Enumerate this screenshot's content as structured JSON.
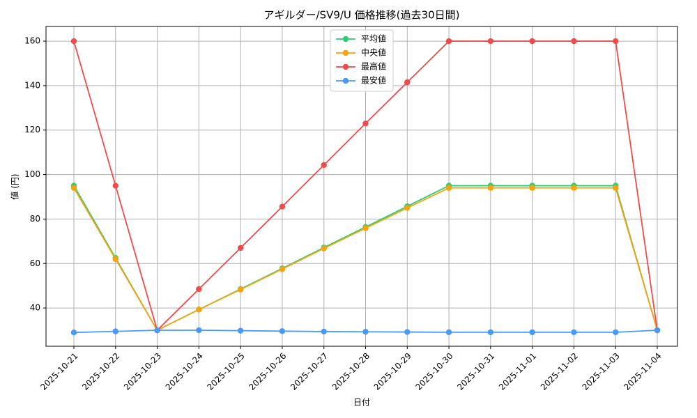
{
  "chart_data": {
    "type": "line",
    "title": "アギルダー/SV9/U 価格推移(過去30日間)",
    "xlabel": "日付",
    "ylabel": "値 (円)",
    "categories": [
      "2025-10-21",
      "2025-10-22",
      "2025-10-23",
      "2025-10-24",
      "2025-10-25",
      "2025-10-26",
      "2025-10-27",
      "2025-10-28",
      "2025-10-29",
      "2025-10-30",
      "2025-10-31",
      "2025-11-01",
      "2025-11-02",
      "2025-11-03",
      "2025-11-04"
    ],
    "series": [
      {
        "name": "平均値",
        "color": "#2ecc71",
        "values": [
          95,
          62.5,
          30,
          39.3,
          48.5,
          57.8,
          67.2,
          76.4,
          85.7,
          95,
          95,
          95,
          95,
          95,
          30
        ]
      },
      {
        "name": "中央値",
        "color": "#f5a30f",
        "values": [
          94,
          62,
          30,
          39.3,
          48.3,
          57.5,
          66.8,
          75.9,
          85,
          94,
          94,
          94,
          94,
          94,
          30
        ]
      },
      {
        "name": "最高値",
        "color": "#ef4b4b",
        "values": [
          160,
          95,
          30,
          48.5,
          67,
          85.6,
          104.3,
          123,
          141.5,
          160,
          160,
          160,
          160,
          160,
          30
        ]
      },
      {
        "name": "最安値",
        "color": "#4a9af5",
        "values": [
          29,
          29.5,
          30,
          30,
          29.8,
          29.6,
          29.4,
          29.3,
          29.2,
          29.1,
          29.1,
          29.1,
          29.1,
          29.1,
          30
        ]
      }
    ],
    "ylim": [
      22.8,
      166.6
    ],
    "yticks": [
      40,
      60,
      80,
      100,
      120,
      140,
      160
    ],
    "grid": true,
    "legend": "upper center"
  }
}
